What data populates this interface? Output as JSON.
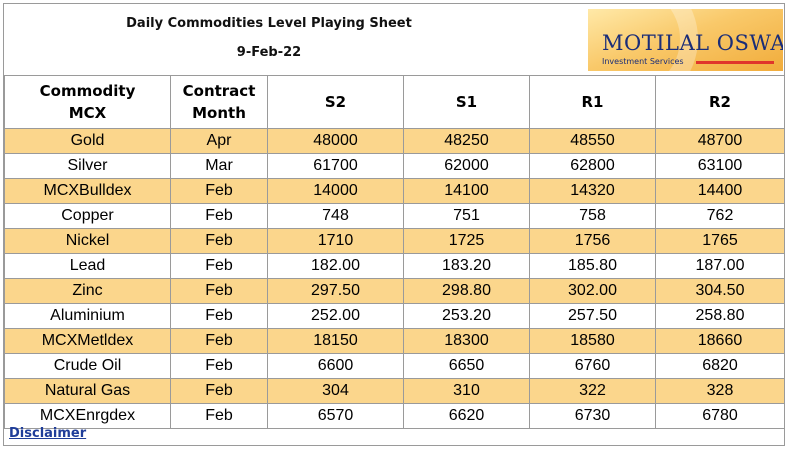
{
  "header": {
    "title": "Daily Commodities Level Playing Sheet",
    "date": "9-Feb-22",
    "logo_name": "MOTILAL OSWAL",
    "logo_sub": "Investment Services"
  },
  "table": {
    "headers": [
      {
        "line1": "Commodity",
        "line2": "MCX"
      },
      {
        "line1": "Contract",
        "line2": "Month"
      },
      {
        "line1": "S2",
        "line2": ""
      },
      {
        "line1": "S1",
        "line2": ""
      },
      {
        "line1": "R1",
        "line2": ""
      },
      {
        "line1": "R2",
        "line2": ""
      }
    ],
    "rows": [
      [
        "Gold",
        "Apr",
        "48000",
        "48250",
        "48550",
        "48700"
      ],
      [
        "Silver",
        "Mar",
        "61700",
        "62000",
        "62800",
        "63100"
      ],
      [
        "MCXBulldex",
        "Feb",
        "14000",
        "14100",
        "14320",
        "14400"
      ],
      [
        "Copper",
        "Feb",
        "748",
        "751",
        "758",
        "762"
      ],
      [
        "Nickel",
        "Feb",
        "1710",
        "1725",
        "1756",
        "1765"
      ],
      [
        "Lead",
        "Feb",
        "182.00",
        "183.20",
        "185.80",
        "187.00"
      ],
      [
        "Zinc",
        "Feb",
        "297.50",
        "298.80",
        "302.00",
        "304.50"
      ],
      [
        "Aluminium",
        "Feb",
        "252.00",
        "253.20",
        "257.50",
        "258.80"
      ],
      [
        "MCXMetldex",
        "Feb",
        "18150",
        "18300",
        "18580",
        "18660"
      ],
      [
        "Crude Oil",
        "Feb",
        "6600",
        "6650",
        "6760",
        "6820"
      ],
      [
        "Natural Gas",
        "Feb",
        "304",
        "310",
        "322",
        "328"
      ],
      [
        "MCXEnrgdex",
        "Feb",
        "6570",
        "6620",
        "6730",
        "6780"
      ]
    ]
  },
  "footer": {
    "disclaimer": "Disclaimer"
  },
  "colors": {
    "shaded_row": "#fbd68c",
    "link": "#1f3d99",
    "logo_text": "#1a2d78"
  }
}
